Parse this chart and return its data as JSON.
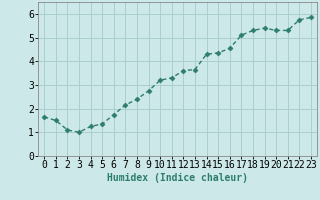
{
  "x": [
    0,
    1,
    2,
    3,
    4,
    5,
    6,
    7,
    8,
    9,
    10,
    11,
    12,
    13,
    14,
    15,
    16,
    17,
    18,
    19,
    20,
    21,
    22,
    23
  ],
  "y": [
    1.65,
    1.5,
    1.1,
    1.0,
    1.25,
    1.35,
    1.75,
    2.15,
    2.4,
    2.75,
    3.2,
    3.3,
    3.6,
    3.65,
    4.3,
    4.35,
    4.55,
    5.1,
    5.3,
    5.4,
    5.3,
    5.3,
    5.75,
    5.85
  ],
  "line_color": "#2d7d6e",
  "marker": "D",
  "marker_size": 2.5,
  "bg_color": "#cce8e8",
  "grid_color": "#aacece",
  "xlabel": "Humidex (Indice chaleur)",
  "ylim": [
    0,
    6.5
  ],
  "xlim": [
    -0.5,
    23.5
  ],
  "yticks": [
    0,
    1,
    2,
    3,
    4,
    5,
    6
  ],
  "xticks": [
    0,
    1,
    2,
    3,
    4,
    5,
    6,
    7,
    8,
    9,
    10,
    11,
    12,
    13,
    14,
    15,
    16,
    17,
    18,
    19,
    20,
    21,
    22,
    23
  ],
  "xlabel_fontsize": 7,
  "tick_fontsize": 7,
  "line_width": 1.0
}
